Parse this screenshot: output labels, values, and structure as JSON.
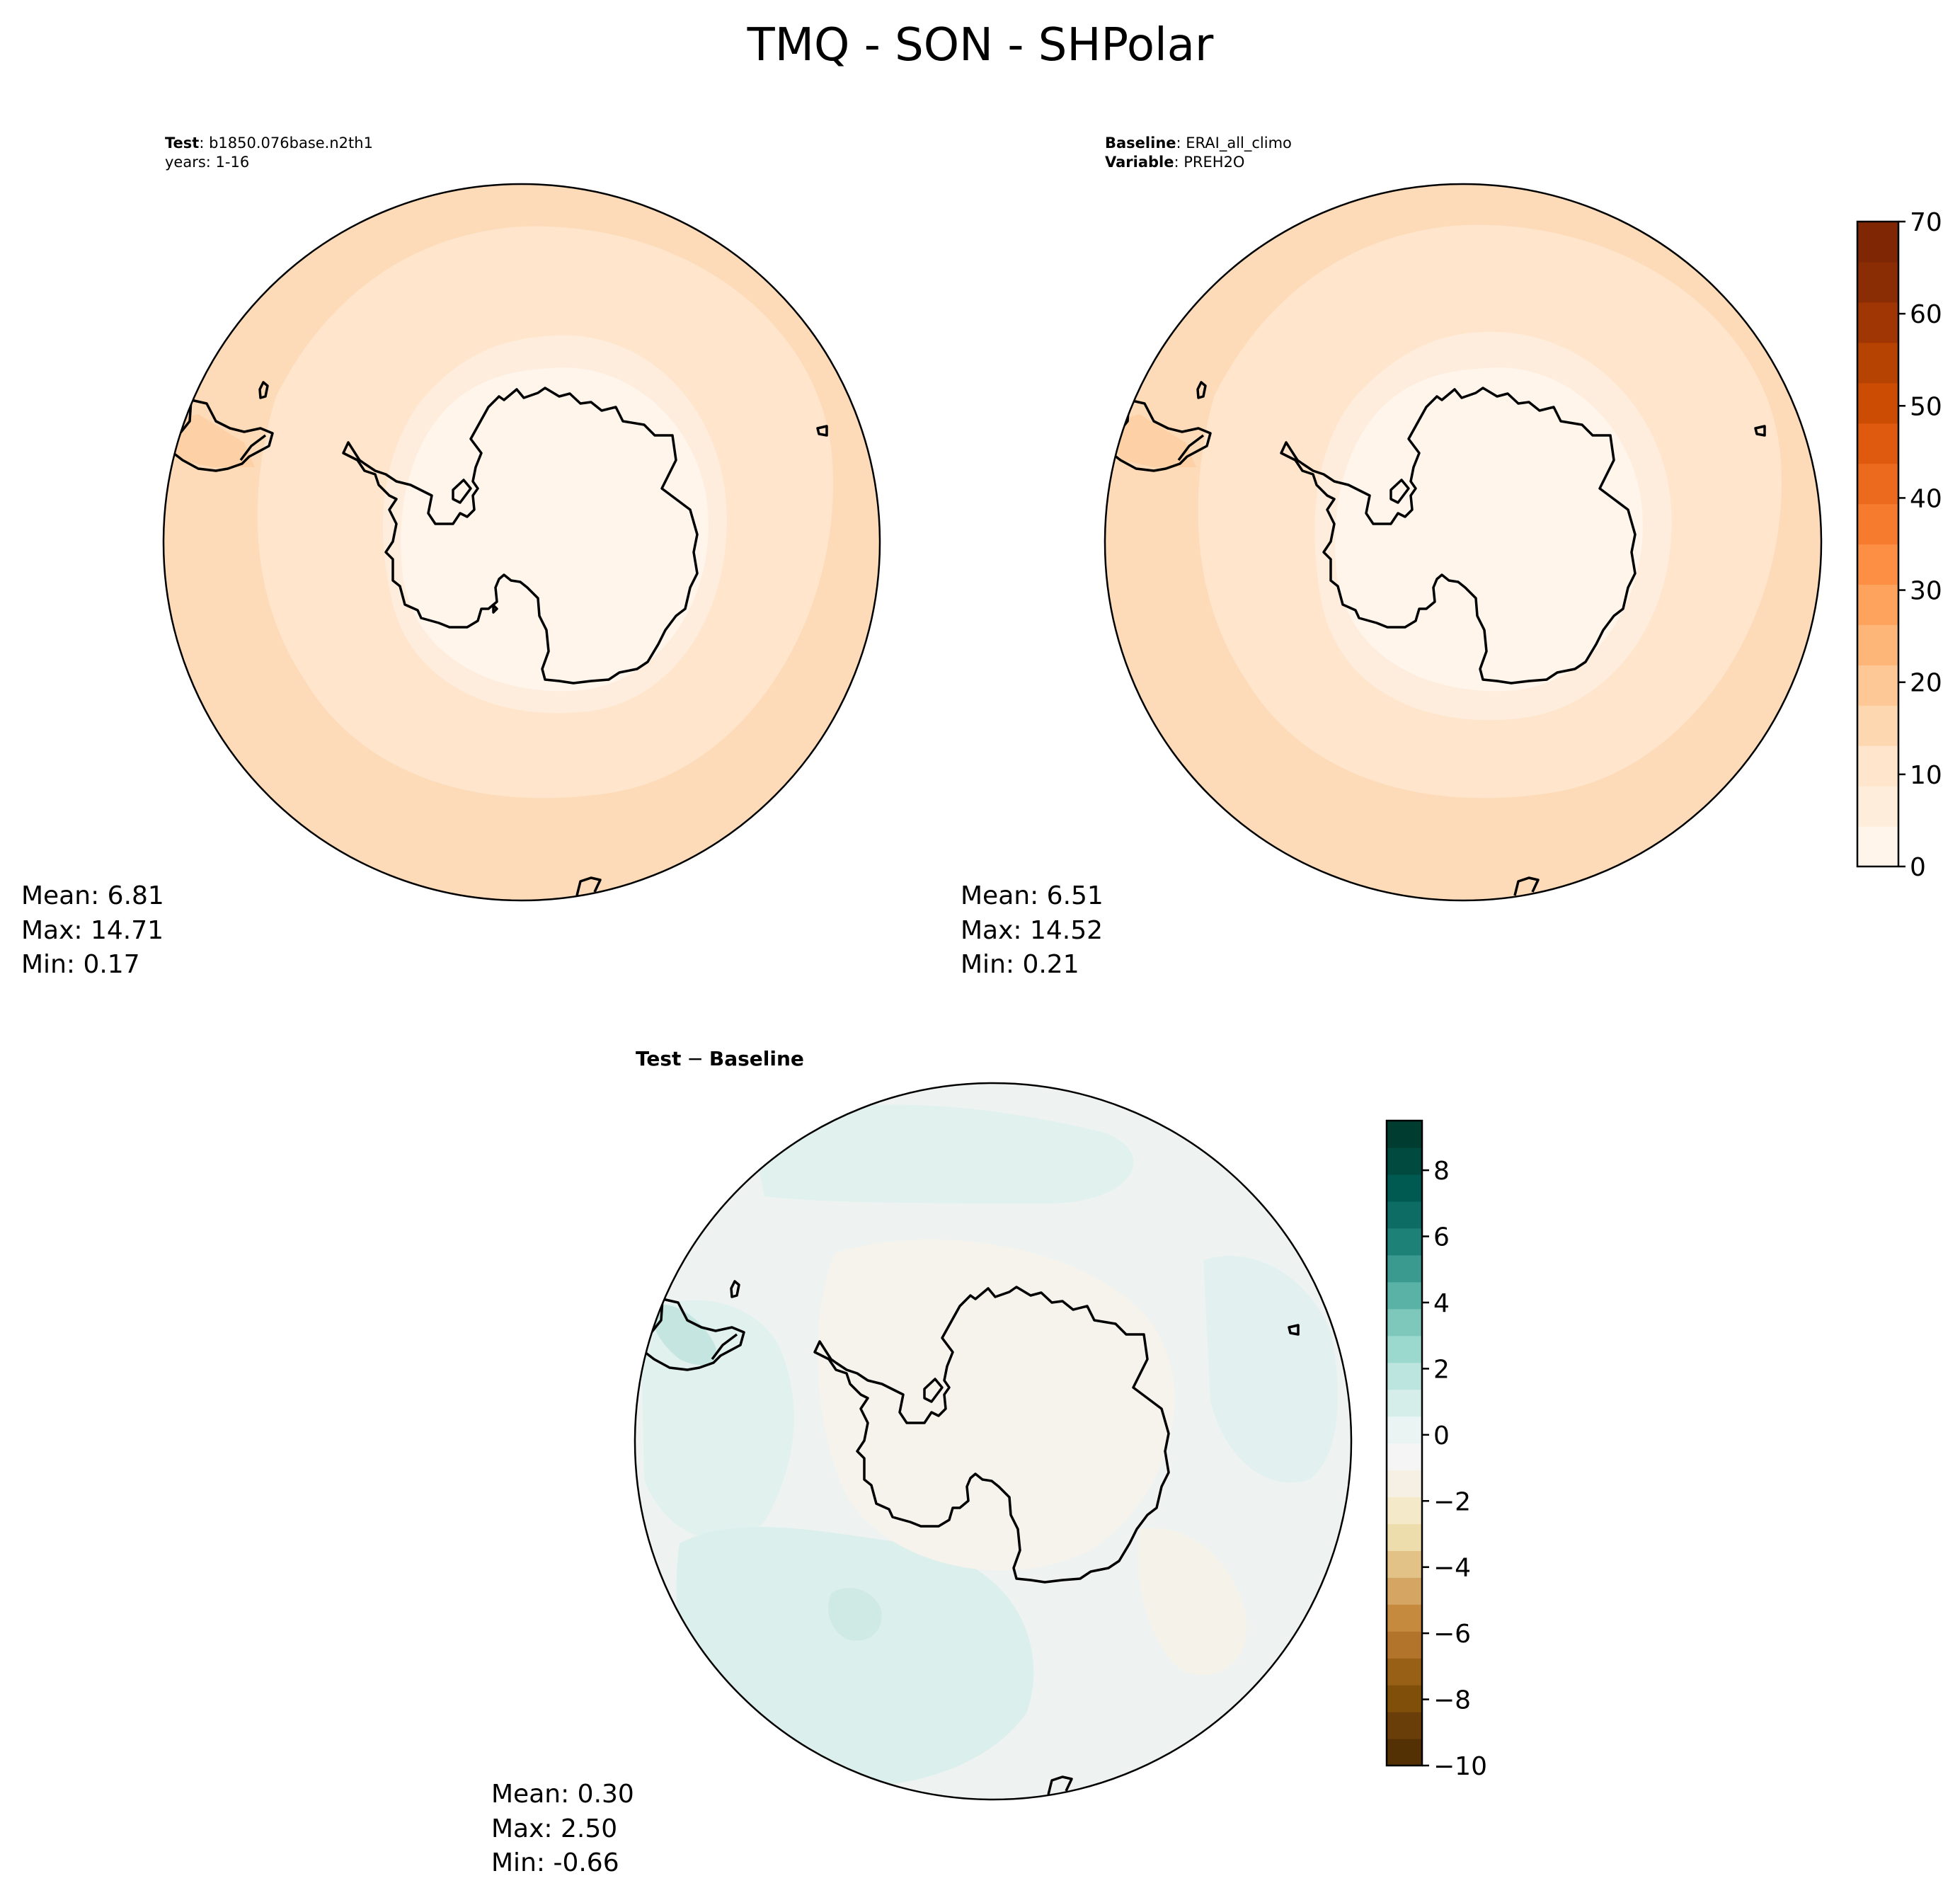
{
  "title": "TMQ - SON - SHPolar",
  "colors": {
    "coast": "#000000",
    "rim": "#000000",
    "seq_levels": [
      "#fff5eb",
      "#feeddb",
      "#fee5cb",
      "#fdd7b0",
      "#fdc895",
      "#fdb678",
      "#fda35d",
      "#fd8f45",
      "#f67b2f",
      "#eb6a1d",
      "#df5a0e",
      "#cc4c03",
      "#b74302",
      "#a03603",
      "#8a2d04",
      "#7f2704"
    ],
    "div_levels": [
      "#543005",
      "#6a3e08",
      "#80500b",
      "#985f16",
      "#b2742a",
      "#c68a3f",
      "#d5a663",
      "#e2c286",
      "#eeddac",
      "#f4e9c9",
      "#f5f0e3",
      "#f5f5f5",
      "#eaf4f2",
      "#d6eeea",
      "#bbe5de",
      "#9bd8cd",
      "#7dc8bb",
      "#5ab2a6",
      "#3a9a8f",
      "#1e8178",
      "#0d6c63",
      "#015a51",
      "#004a40",
      "#003c30"
    ]
  },
  "panels": {
    "test": {
      "case_label": "Test",
      "case_name": "b1850.076base.n2th1",
      "years": "years: 1-16",
      "stats": {
        "mean": "Mean:  6.81",
        "max": "Max: 14.71",
        "min": "Min:  0.17"
      }
    },
    "baseline": {
      "case_label": "Baseline",
      "case_name": "ERAI_all_climo",
      "variable_label": "Variable",
      "variable_name": "PREH2O",
      "stats": {
        "mean": "Mean:  6.51",
        "max": "Max: 14.52",
        "min": "Min:  0.21"
      }
    },
    "diff": {
      "title_left": "Test",
      "title_sep": "−",
      "title_right": "Baseline",
      "stats": {
        "mean": "Mean:  0.30",
        "max": "Max:  2.50",
        "min": "Min: -0.66"
      }
    }
  },
  "chart_data": [
    {
      "type": "heatmap",
      "name": "test",
      "projection": "south-polar-stereographic",
      "field": "TMQ",
      "zones_outer_to_inner": [
        15,
        10,
        5,
        0
      ],
      "mean": 6.81,
      "max": 14.71,
      "min": 0.17
    },
    {
      "type": "heatmap",
      "name": "baseline",
      "projection": "south-polar-stereographic",
      "field": "PREH2O",
      "zones_outer_to_inner": [
        15,
        10,
        5,
        0
      ],
      "mean": 6.51,
      "max": 14.52,
      "min": 0.21,
      "colorbar": {
        "range": [
          0,
          70
        ],
        "step": 5,
        "ticks": [
          "0",
          "10",
          "20",
          "30",
          "40",
          "50",
          "60",
          "70"
        ]
      }
    },
    {
      "type": "heatmap",
      "name": "difference",
      "projection": "south-polar-stereographic",
      "mean": 0.3,
      "max": 2.5,
      "min": -0.66,
      "colorbar": {
        "range": [
          -10,
          9.5
        ],
        "step": 0.8,
        "ticks": [
          "8",
          "6",
          "4",
          "2",
          "0",
          "−2",
          "−4",
          "−6",
          "−8",
          "−10"
        ]
      }
    }
  ]
}
